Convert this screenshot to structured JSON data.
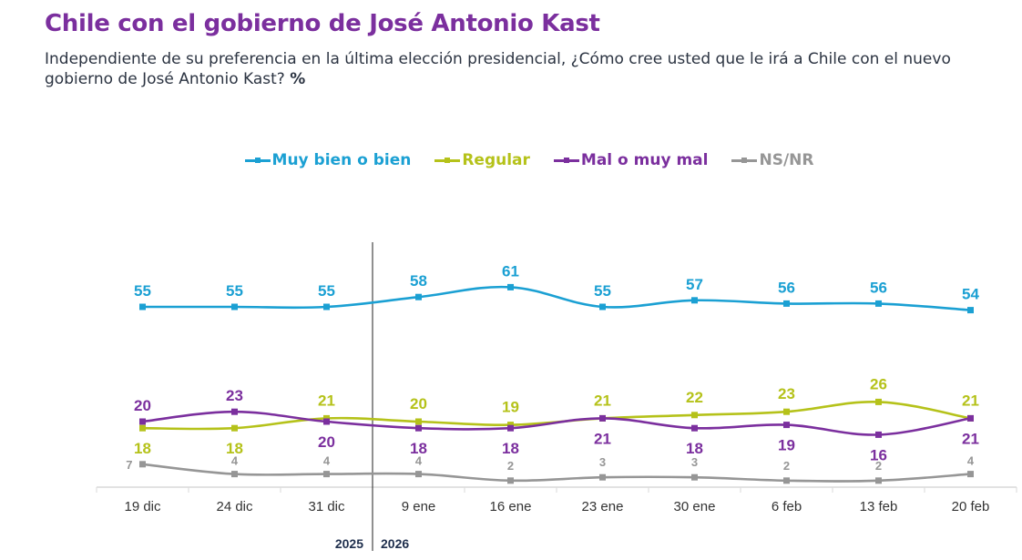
{
  "header": {
    "title": "Chile con el gobierno de José Antonio Kast",
    "subtitle": "Independiente de su preferencia en la última elección presidencial, ¿Cómo cree usted que le irá a Chile con el nuevo gobierno de José Antonio Kast?",
    "unit": "%"
  },
  "chart_data": {
    "type": "line",
    "title": "Chile con el gobierno de José Antonio Kast",
    "xlabel": "",
    "ylabel": "%",
    "ylim": [
      0,
      70
    ],
    "grid": false,
    "legend_position": "top-center",
    "categories": [
      "19 dic",
      "24 dic",
      "31 dic",
      "9 ene",
      "16 ene",
      "23 ene",
      "30 ene",
      "6 feb",
      "13 feb",
      "20 feb"
    ],
    "year_divider": {
      "after_index": 2,
      "left_label": "2025",
      "right_label": "2026"
    },
    "series": [
      {
        "name": "Muy bien o bien",
        "color": "#1BA0D3",
        "values": [
          55,
          55,
          55,
          58,
          61,
          55,
          57,
          56,
          56,
          54
        ]
      },
      {
        "name": "Regular",
        "color": "#B5C21A",
        "values": [
          18,
          18,
          21,
          20,
          19,
          21,
          22,
          23,
          26,
          21
        ]
      },
      {
        "name": "Mal o muy mal",
        "color": "#7B2F9E",
        "values": [
          20,
          23,
          20,
          18,
          18,
          21,
          18,
          19,
          16,
          21
        ]
      },
      {
        "name": "NS/NR",
        "color": "#969696",
        "values": [
          7,
          4,
          4,
          4,
          2,
          3,
          3,
          2,
          2,
          4
        ]
      }
    ]
  }
}
